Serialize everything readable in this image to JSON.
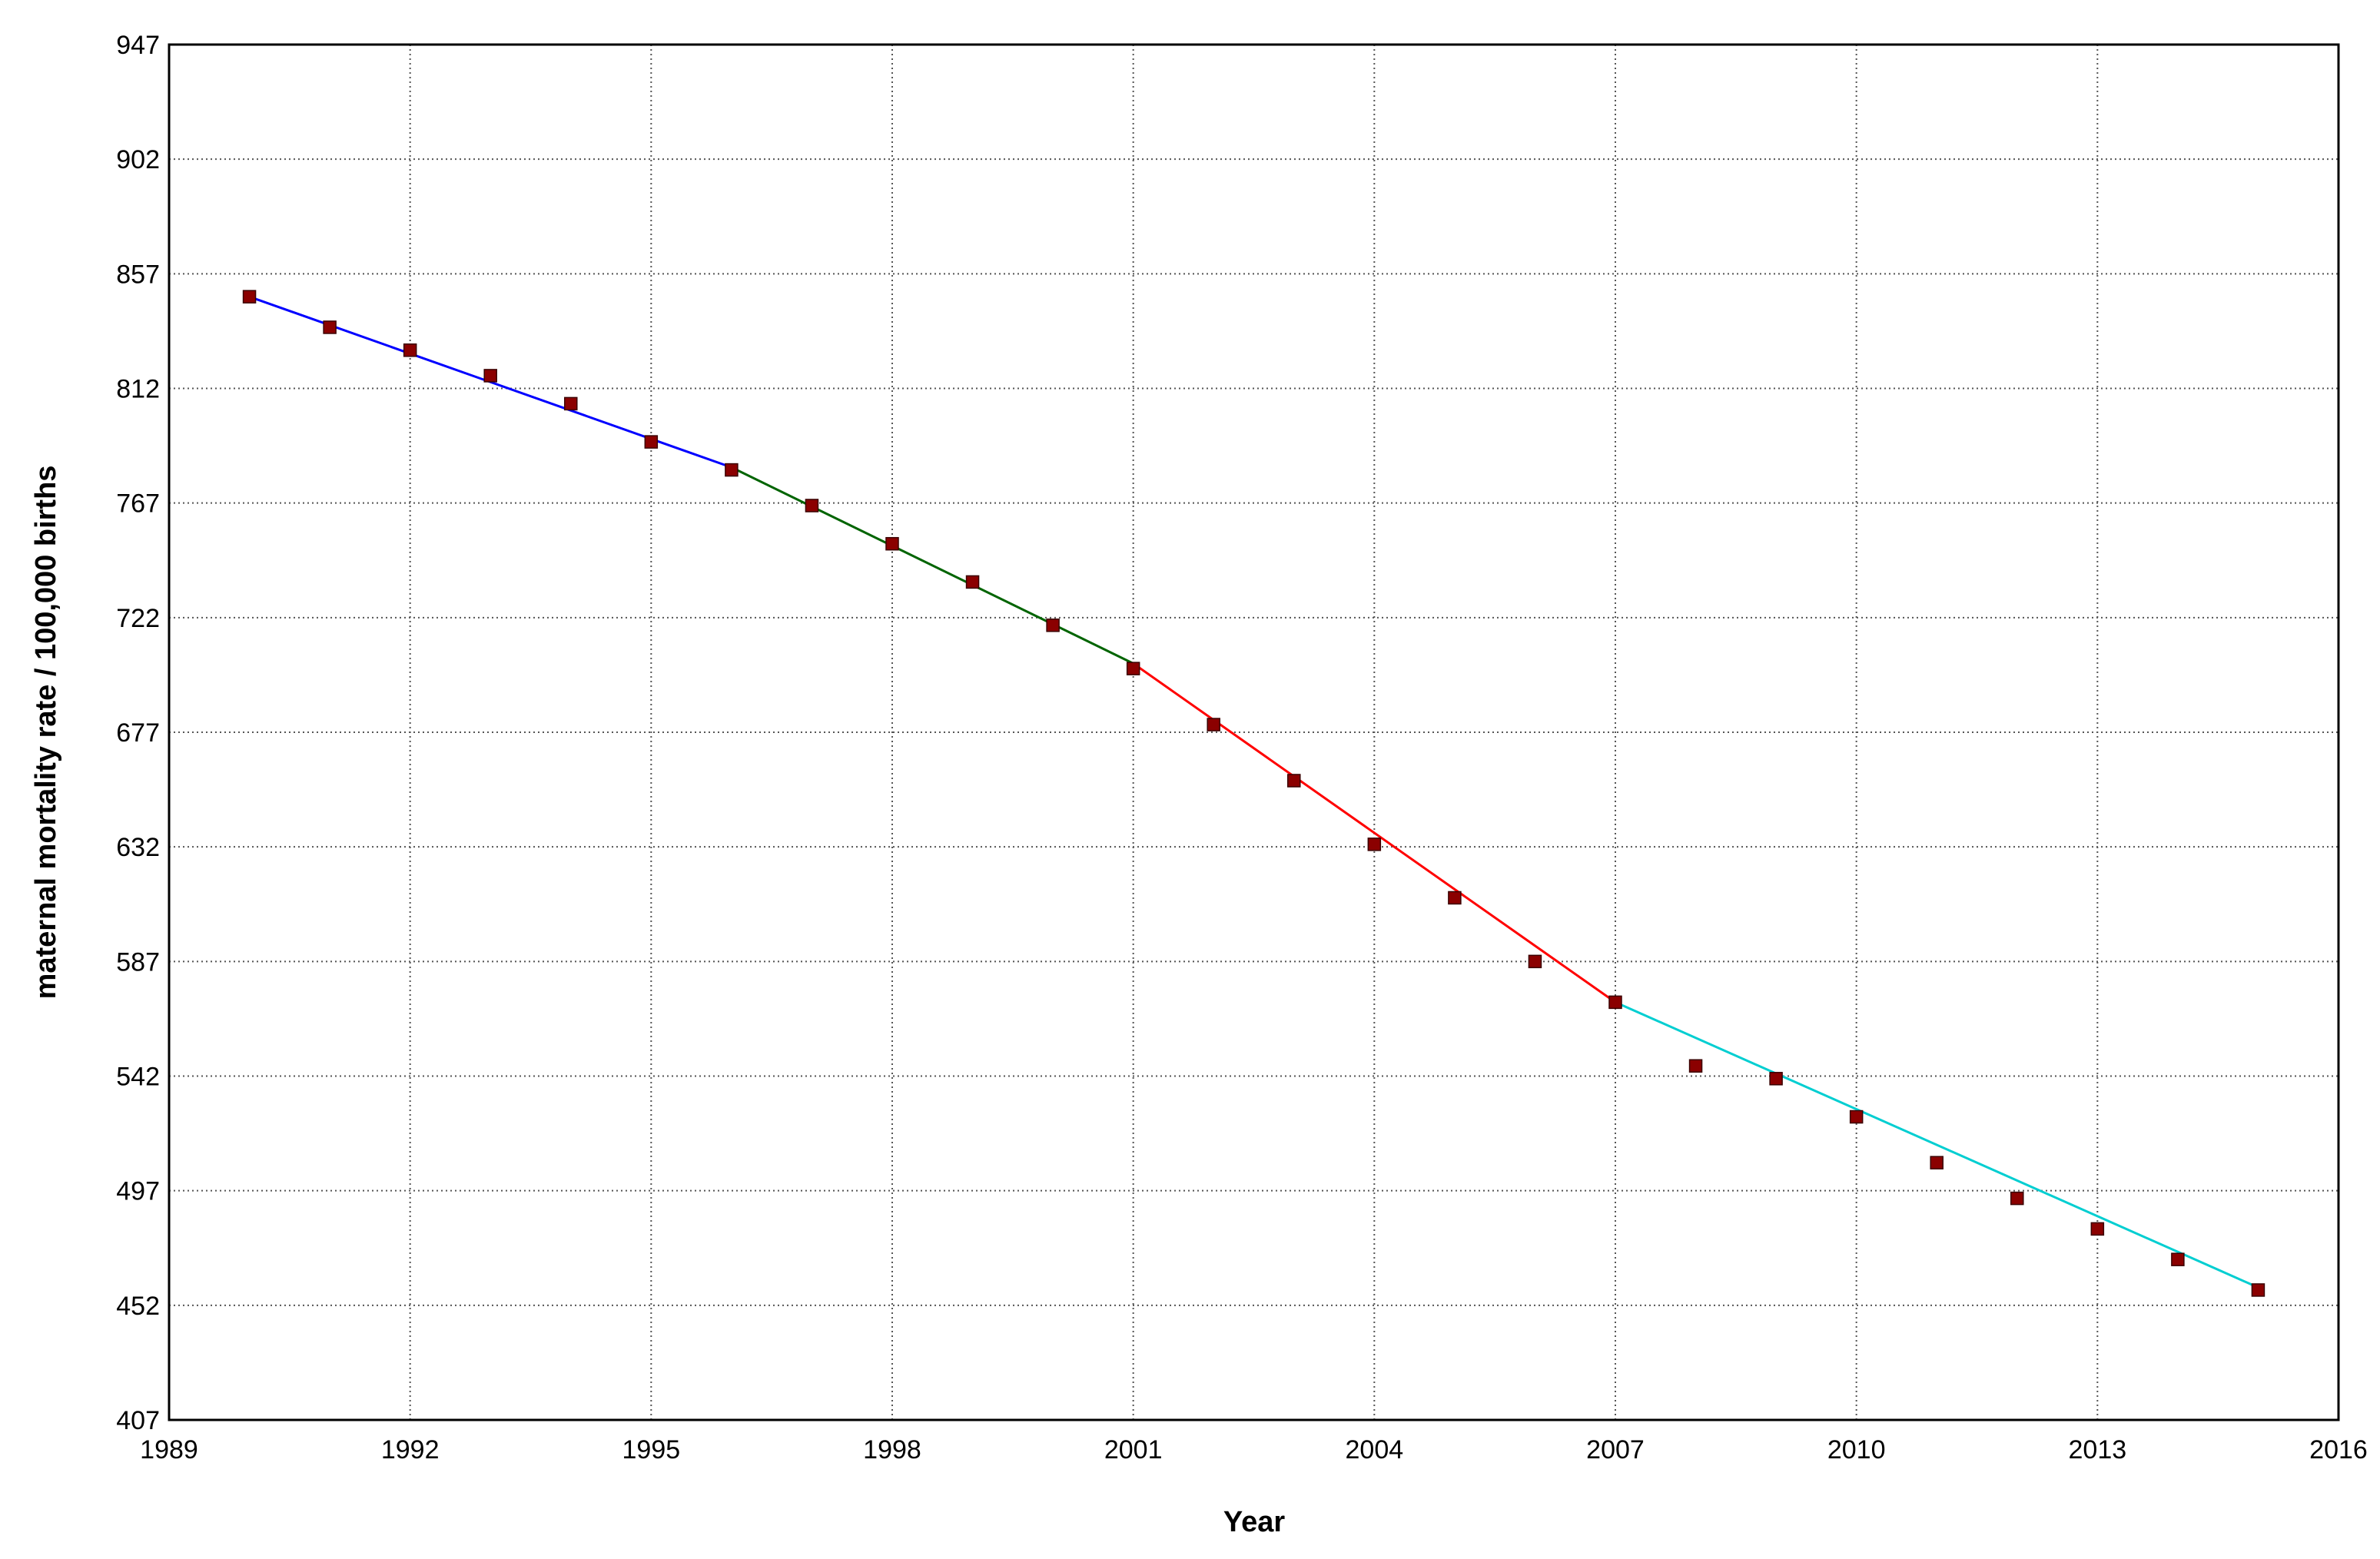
{
  "chart_data": {
    "type": "line",
    "title": "",
    "xlabel": "Year",
    "ylabel": "maternal mortality rate / 100,000 births",
    "xlim": [
      1989,
      2016
    ],
    "ylim": [
      407,
      947
    ],
    "x_ticks": [
      "1989",
      "1992",
      "1995",
      "1998",
      "2001",
      "2004",
      "2007",
      "2010",
      "2013",
      "2016"
    ],
    "y_ticks": [
      "407",
      "452",
      "497",
      "542",
      "587",
      "632",
      "677",
      "722",
      "767",
      "812",
      "857",
      "902",
      "947"
    ],
    "grid": true,
    "grid_style": "dotted",
    "points": {
      "x": [
        1990,
        1991,
        1992,
        1993,
        1994,
        1995,
        1996,
        1997,
        1998,
        1999,
        2000,
        2001,
        2002,
        2003,
        2004,
        2005,
        2006,
        2007,
        2008,
        2009,
        2010,
        2011,
        2012,
        2013,
        2014,
        2015
      ],
      "y": [
        848,
        836,
        827,
        817,
        806,
        791,
        780,
        766,
        751,
        736,
        719,
        702,
        680,
        658,
        633,
        612,
        587,
        571,
        546,
        541,
        526,
        508,
        494,
        482,
        470,
        458
      ],
      "marker_color": "#8B0000"
    },
    "series": [
      {
        "x": [
          1990,
          1996
        ],
        "y": [
          848,
          781
        ],
        "color": "#0000FF"
      },
      {
        "x": [
          1996,
          2001
        ],
        "y": [
          781,
          704
        ],
        "color": "#006400"
      },
      {
        "x": [
          2001,
          2007
        ],
        "y": [
          704,
          571
        ],
        "color": "#FF0000"
      },
      {
        "x": [
          2007,
          2015
        ],
        "y": [
          571,
          459
        ],
        "color": "#00CED1"
      }
    ]
  }
}
